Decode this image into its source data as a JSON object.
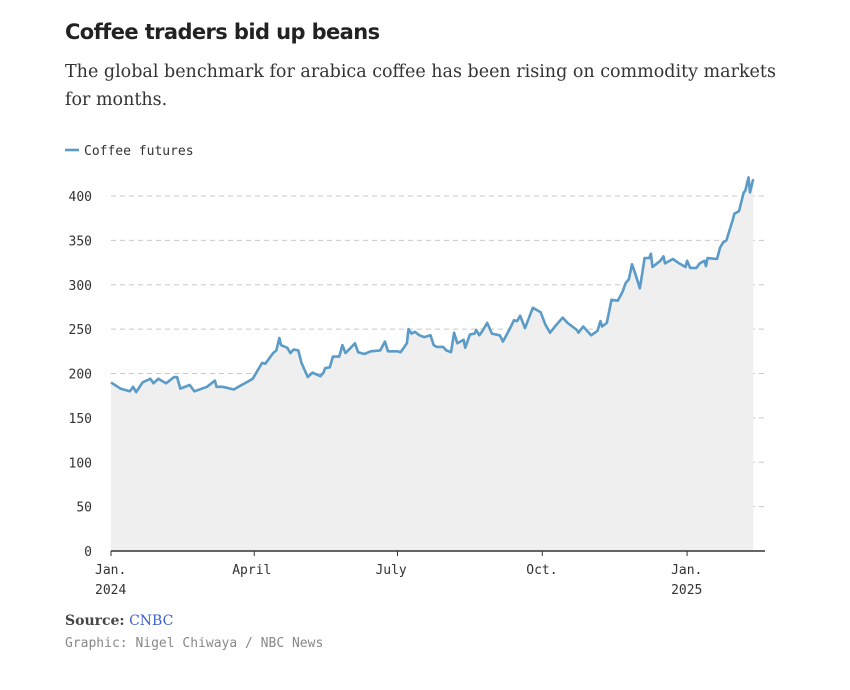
{
  "header": {
    "title": "Coffee traders bid up beans",
    "subtitle": "The global benchmark for arabica coffee has been rising on commodity markets for months."
  },
  "footer": {
    "source_label": "Source:",
    "source_link": "CNBC",
    "credit": "Graphic: Nigel Chiwaya / NBC News"
  },
  "colors": {
    "line": "#5b9bc8",
    "area": "#efefef",
    "grid": "#c8c8c8",
    "link": "#3b5fd0"
  },
  "chart_data": {
    "type": "area",
    "title": "",
    "xlabel": "",
    "ylabel": "",
    "legend": {
      "position": "top-left",
      "entries": [
        "Coffee futures"
      ]
    },
    "grid": "horizontal dashed",
    "xlim": [
      "2024-01-01",
      "2025-02-20"
    ],
    "ylim": [
      0,
      400
    ],
    "yticks": [
      "0",
      "50",
      "100",
      "150",
      "200",
      "250",
      "300",
      "350",
      "400"
    ],
    "xticks": [
      {
        "date": "2024-01-01",
        "label": "Jan.",
        "sublabel": "2024"
      },
      {
        "date": "2024-04-01",
        "label": "April",
        "sublabel": ""
      },
      {
        "date": "2024-07-01",
        "label": "July",
        "sublabel": ""
      },
      {
        "date": "2024-10-01",
        "label": "Oct.",
        "sublabel": ""
      },
      {
        "date": "2025-01-01",
        "label": "Jan.",
        "sublabel": "2025"
      }
    ],
    "series": [
      {
        "name": "Coffee futures",
        "points": [
          [
            "2024-01-01",
            190
          ],
          [
            "2024-01-07",
            183
          ],
          [
            "2024-01-13",
            180
          ],
          [
            "2024-01-15",
            185
          ],
          [
            "2024-01-17",
            179
          ],
          [
            "2024-01-21",
            190
          ],
          [
            "2024-01-26",
            194
          ],
          [
            "2024-01-28",
            189
          ],
          [
            "2024-01-31",
            194
          ],
          [
            "2024-02-05",
            189
          ],
          [
            "2024-02-10",
            196
          ],
          [
            "2024-02-12",
            196
          ],
          [
            "2024-02-14",
            183
          ],
          [
            "2024-02-20",
            187
          ],
          [
            "2024-02-23",
            180
          ],
          [
            "2024-03-02",
            185
          ],
          [
            "2024-03-07",
            192
          ],
          [
            "2024-03-08",
            185
          ],
          [
            "2024-03-12",
            185
          ],
          [
            "2024-03-19",
            182
          ],
          [
            "2024-03-22",
            185
          ],
          [
            "2024-03-27",
            190
          ],
          [
            "2024-03-31",
            194
          ],
          [
            "2024-04-06",
            212
          ],
          [
            "2024-04-08",
            211
          ],
          [
            "2024-04-13",
            223
          ],
          [
            "2024-04-15",
            226
          ],
          [
            "2024-04-17",
            240
          ],
          [
            "2024-04-18",
            232
          ],
          [
            "2024-04-22",
            229
          ],
          [
            "2024-04-24",
            223
          ],
          [
            "2024-04-26",
            227
          ],
          [
            "2024-04-29",
            226
          ],
          [
            "2024-05-01",
            212
          ],
          [
            "2024-05-05",
            196
          ],
          [
            "2024-05-08",
            201
          ],
          [
            "2024-05-13",
            197
          ],
          [
            "2024-05-15",
            201
          ],
          [
            "2024-05-16",
            206
          ],
          [
            "2024-05-19",
            207
          ],
          [
            "2024-05-21",
            219
          ],
          [
            "2024-05-25",
            219
          ],
          [
            "2024-05-27",
            232
          ],
          [
            "2024-05-29",
            223
          ],
          [
            "2024-06-04",
            234
          ],
          [
            "2024-06-06",
            224
          ],
          [
            "2024-06-10",
            222
          ],
          [
            "2024-06-14",
            225
          ],
          [
            "2024-06-20",
            226
          ],
          [
            "2024-06-23",
            236
          ],
          [
            "2024-06-25",
            225
          ],
          [
            "2024-07-01",
            225
          ],
          [
            "2024-07-03",
            224
          ],
          [
            "2024-07-07",
            234
          ],
          [
            "2024-07-08",
            250
          ],
          [
            "2024-07-10",
            245
          ],
          [
            "2024-07-12",
            247
          ],
          [
            "2024-07-15",
            243
          ],
          [
            "2024-07-18",
            241
          ],
          [
            "2024-07-22",
            243
          ],
          [
            "2024-07-24",
            232
          ],
          [
            "2024-07-26",
            230
          ],
          [
            "2024-07-30",
            230
          ],
          [
            "2024-08-01",
            226
          ],
          [
            "2024-08-04",
            224
          ],
          [
            "2024-08-06",
            246
          ],
          [
            "2024-08-08",
            234
          ],
          [
            "2024-08-12",
            238
          ],
          [
            "2024-08-13",
            229
          ],
          [
            "2024-08-16",
            244
          ],
          [
            "2024-08-19",
            245
          ],
          [
            "2024-08-20",
            249
          ],
          [
            "2024-08-22",
            243
          ],
          [
            "2024-08-24",
            248
          ],
          [
            "2024-08-27",
            257
          ],
          [
            "2024-08-30",
            245
          ],
          [
            "2024-09-04",
            243
          ],
          [
            "2024-09-06",
            236
          ],
          [
            "2024-09-10",
            249
          ],
          [
            "2024-09-13",
            260
          ],
          [
            "2024-09-15",
            259
          ],
          [
            "2024-09-17",
            265
          ],
          [
            "2024-09-20",
            251
          ],
          [
            "2024-09-25",
            274
          ],
          [
            "2024-09-30",
            269
          ],
          [
            "2024-10-03",
            255
          ],
          [
            "2024-10-06",
            246
          ],
          [
            "2024-10-10",
            255
          ],
          [
            "2024-10-14",
            263
          ],
          [
            "2024-10-17",
            257
          ],
          [
            "2024-10-23",
            249
          ],
          [
            "2024-10-24",
            246
          ],
          [
            "2024-10-27",
            253
          ],
          [
            "2024-11-01",
            243
          ],
          [
            "2024-11-05",
            248
          ],
          [
            "2024-11-07",
            259
          ],
          [
            "2024-11-08",
            253
          ],
          [
            "2024-11-11",
            257
          ],
          [
            "2024-11-14",
            283
          ],
          [
            "2024-11-18",
            282
          ],
          [
            "2024-11-21",
            292
          ],
          [
            "2024-11-23",
            302
          ],
          [
            "2024-11-25",
            306
          ],
          [
            "2024-11-27",
            323
          ],
          [
            "2024-11-29",
            313
          ],
          [
            "2024-12-02",
            296
          ],
          [
            "2024-12-05",
            330
          ],
          [
            "2024-12-08",
            330
          ],
          [
            "2024-12-09",
            335
          ],
          [
            "2024-12-10",
            320
          ],
          [
            "2024-12-15",
            327
          ],
          [
            "2024-12-17",
            332
          ],
          [
            "2024-12-18",
            324
          ],
          [
            "2024-12-23",
            329
          ],
          [
            "2024-12-27",
            324
          ],
          [
            "2024-12-31",
            320
          ],
          [
            "2025-01-01",
            327
          ],
          [
            "2025-01-03",
            319
          ],
          [
            "2025-01-07",
            319
          ],
          [
            "2025-01-09",
            324
          ],
          [
            "2025-01-12",
            327
          ],
          [
            "2025-01-13",
            321
          ],
          [
            "2025-01-14",
            330
          ],
          [
            "2025-01-20",
            329
          ],
          [
            "2025-01-22",
            342
          ],
          [
            "2025-01-24",
            348
          ],
          [
            "2025-01-26",
            350
          ],
          [
            "2025-01-30",
            373
          ],
          [
            "2025-01-31",
            380
          ],
          [
            "2025-02-03",
            383
          ],
          [
            "2025-02-06",
            404
          ],
          [
            "2025-02-07",
            406
          ],
          [
            "2025-02-09",
            421
          ],
          [
            "2025-02-10",
            404
          ],
          [
            "2025-02-12",
            419
          ]
        ]
      }
    ]
  }
}
